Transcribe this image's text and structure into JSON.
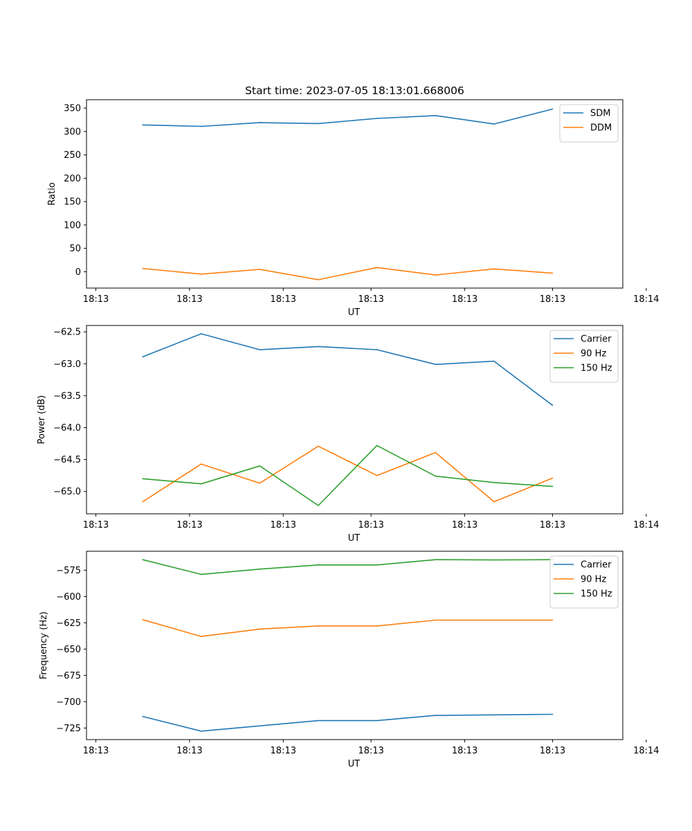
{
  "chart_data": [
    {
      "type": "line",
      "title": "Start time: 2023-07-05 18:13:01.668006",
      "xlabel": "UT",
      "ylabel": "Ratio",
      "x": [
        1,
        2,
        3,
        4,
        5,
        6,
        7,
        8
      ],
      "xlim": [
        0.04,
        9.2
      ],
      "xticks": [
        {
          "value": 0.2,
          "label": "18:13"
        },
        {
          "value": 1.8,
          "label": "18:13"
        },
        {
          "value": 3.4,
          "label": "18:13"
        },
        {
          "value": 4.9,
          "label": "18:13"
        },
        {
          "value": 6.5,
          "label": "18:13"
        },
        {
          "value": 8.0,
          "label": "18:13"
        },
        {
          "value": 9.6,
          "label": "18:14"
        }
      ],
      "ylim": [
        -35,
        368
      ],
      "yticks": [
        {
          "value": 350,
          "label": "350"
        },
        {
          "value": 300,
          "label": "300"
        },
        {
          "value": 250,
          "label": "250"
        },
        {
          "value": 200,
          "label": "200"
        },
        {
          "value": 150,
          "label": "150"
        },
        {
          "value": 100,
          "label": "100"
        },
        {
          "value": 50,
          "label": "50"
        },
        {
          "value": 0,
          "label": "0"
        }
      ],
      "legend_position": "top-right",
      "series": [
        {
          "name": "SDM",
          "color": "#1f77b4",
          "values": [
            314,
            311,
            319,
            317,
            328,
            334,
            316,
            348
          ]
        },
        {
          "name": "DDM",
          "color": "#ff7f0e",
          "values": [
            7,
            -5,
            5,
            -17,
            9,
            -7,
            6,
            -3
          ]
        }
      ]
    },
    {
      "type": "line",
      "title": "",
      "xlabel": "UT",
      "ylabel": "Power (dB)",
      "x": [
        1,
        2,
        3,
        4,
        5,
        6,
        7,
        8
      ],
      "xlim": [
        0.04,
        9.2
      ],
      "xticks": [
        {
          "value": 0.2,
          "label": "18:13"
        },
        {
          "value": 1.8,
          "label": "18:13"
        },
        {
          "value": 3.4,
          "label": "18:13"
        },
        {
          "value": 4.9,
          "label": "18:13"
        },
        {
          "value": 6.5,
          "label": "18:13"
        },
        {
          "value": 8.0,
          "label": "18:13"
        },
        {
          "value": 9.6,
          "label": "18:14"
        }
      ],
      "ylim": [
        -65.35,
        -62.4
      ],
      "yticks": [
        {
          "value": -62.5,
          "label": "−62.5"
        },
        {
          "value": -63.0,
          "label": "−63.0"
        },
        {
          "value": -63.5,
          "label": "−63.5"
        },
        {
          "value": -64.0,
          "label": "−64.0"
        },
        {
          "value": -64.5,
          "label": "−64.5"
        },
        {
          "value": -65.0,
          "label": "−65.0"
        }
      ],
      "legend_position": "top-right",
      "series": [
        {
          "name": "Carrier",
          "color": "#1f77b4",
          "values": [
            -62.89,
            -62.53,
            -62.78,
            -62.73,
            -62.78,
            -63.01,
            -62.96,
            -63.65
          ]
        },
        {
          "name": "90 Hz",
          "color": "#ff7f0e",
          "values": [
            -65.16,
            -64.57,
            -64.87,
            -64.29,
            -64.75,
            -64.39,
            -65.16,
            -64.79
          ]
        },
        {
          "name": "150 Hz",
          "color": "#2ca02c",
          "values": [
            -64.8,
            -64.88,
            -64.6,
            -65.22,
            -64.28,
            -64.76,
            -64.86,
            -64.92
          ]
        }
      ]
    },
    {
      "type": "line",
      "title": "",
      "xlabel": "UT",
      "ylabel": "Frequency (Hz)",
      "x": [
        1,
        2,
        3,
        4,
        5,
        6,
        7,
        8
      ],
      "xlim": [
        0.04,
        9.2
      ],
      "xticks": [
        {
          "value": 0.2,
          "label": "18:13"
        },
        {
          "value": 1.8,
          "label": "18:13"
        },
        {
          "value": 3.4,
          "label": "18:13"
        },
        {
          "value": 4.9,
          "label": "18:13"
        },
        {
          "value": 6.5,
          "label": "18:13"
        },
        {
          "value": 8.0,
          "label": "18:13"
        },
        {
          "value": 9.6,
          "label": "18:14"
        }
      ],
      "ylim": [
        -736,
        -557
      ],
      "yticks": [
        {
          "value": -575,
          "label": "−575"
        },
        {
          "value": -600,
          "label": "−600"
        },
        {
          "value": -625,
          "label": "−625"
        },
        {
          "value": -650,
          "label": "−650"
        },
        {
          "value": -675,
          "label": "−675"
        },
        {
          "value": -700,
          "label": "−700"
        },
        {
          "value": -725,
          "label": "−725"
        }
      ],
      "legend_position": "top-right",
      "series": [
        {
          "name": "Carrier",
          "color": "#1f77b4",
          "values": [
            -714,
            -728,
            -723,
            -718,
            -718,
            -713,
            -712.5,
            -712
          ]
        },
        {
          "name": "90 Hz",
          "color": "#ff7f0e",
          "values": [
            -622,
            -638,
            -631,
            -628,
            -628,
            -622.5,
            -622.5,
            -622.5
          ]
        },
        {
          "name": "150 Hz",
          "color": "#2ca02c",
          "values": [
            -565,
            -579,
            -574,
            -570,
            -570,
            -565,
            -565.3,
            -565
          ]
        }
      ]
    }
  ]
}
